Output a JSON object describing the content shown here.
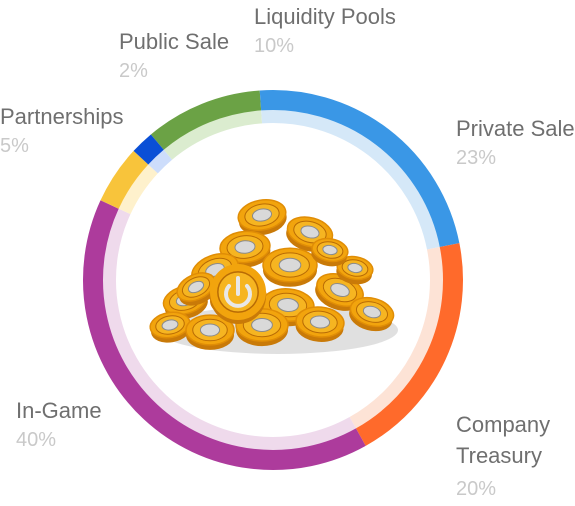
{
  "chart_data": {
    "type": "pie",
    "variant": "donut",
    "title": "",
    "categories": [
      "Liquidity Pools",
      "Private Sale",
      "Company Treasury",
      "In-Game",
      "Partnerships",
      "Public Sale"
    ],
    "values": [
      10,
      23,
      20,
      40,
      5,
      2
    ],
    "colors": [
      "#6ba245",
      "#3a97e6",
      "#ff6a2b",
      "#ad3b9c",
      "#f8c43b",
      "#0a4fd6"
    ],
    "inner_colors": [
      "#dbeccf",
      "#d5e8f8",
      "#fde3d6",
      "#efdaec",
      "#fef1cc",
      "#cdddfb"
    ],
    "labels": {
      "liquidity": {
        "name": "Liquidity Pools",
        "percent": "10%"
      },
      "private": {
        "name": "Private Sale",
        "percent": "23%"
      },
      "treasury": {
        "name": "Company\nTreasury",
        "percent": "20%"
      },
      "ingame": {
        "name": "In-Game",
        "percent": "40%"
      },
      "partnerships": {
        "name": "Partnerships",
        "percent": "5%"
      },
      "public": {
        "name": "Public Sale",
        "percent": "2%"
      }
    }
  },
  "center_image": {
    "icon": "gold-coin-pile-icon",
    "color": "#f2a40d"
  }
}
